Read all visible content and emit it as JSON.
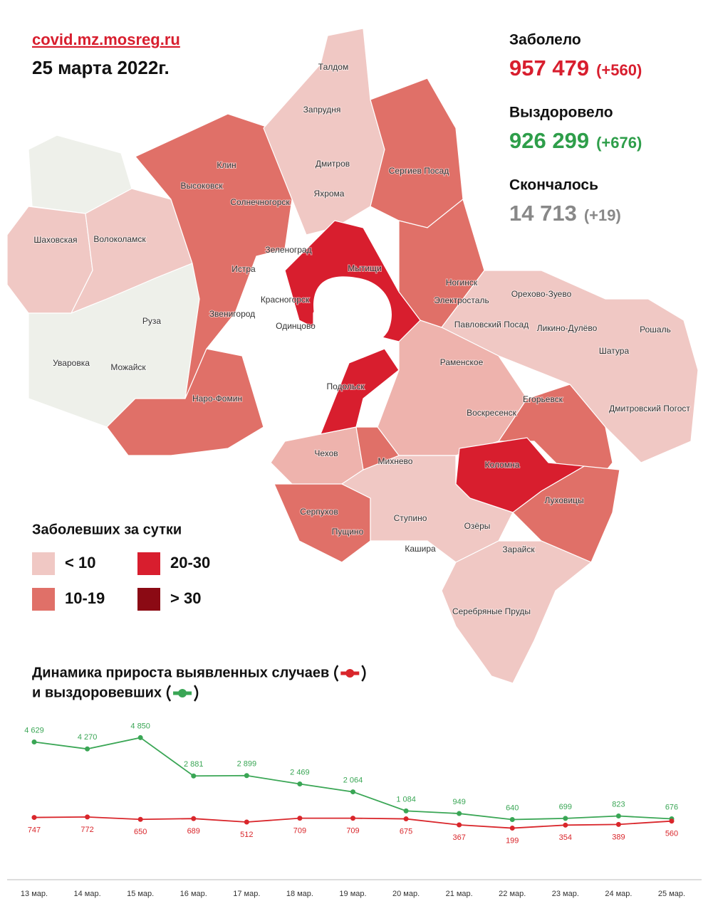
{
  "header": {
    "site": "covid.mz.mosreg.ru",
    "date": "25 марта 2022г."
  },
  "stats": [
    {
      "label": "Заболело",
      "total": "957 479",
      "delta": "(+560)",
      "color": "#d81e2e"
    },
    {
      "label": "Выздоровело",
      "total": "926 299",
      "delta": "(+676)",
      "color": "#2e9e4a"
    },
    {
      "label": "Скончалось",
      "total": "14 713",
      "delta": "(+19)",
      "color": "#888888"
    }
  ],
  "legend": {
    "title": "Заболевших за сутки",
    "items": [
      {
        "label": "< 10",
        "color": "#f0c8c4"
      },
      {
        "label": "10-19",
        "color": "#e07068"
      },
      {
        "label": "20-30",
        "color": "#d81e2e"
      },
      {
        "label": "> 30",
        "color": "#8b0a14"
      }
    ]
  },
  "map": {
    "labels": [
      "Талдом",
      "Запрудня",
      "Дмитров",
      "Яхрома",
      "Сергиев Посад",
      "Клин",
      "Высоковск",
      "Солнечногорск",
      "Шаховская",
      "Волоколамск",
      "Зеленоград",
      "Истра",
      "Мытищи",
      "Ногинск",
      "Орехово-Зуево",
      "Красногорск",
      "Электросталь",
      "Звенигород",
      "Одинцово",
      "Павловский Посад",
      "Ликино-Дулёво",
      "Руза",
      "Рошаль",
      "Шатура",
      "Уваровка",
      "Можайск",
      "Раменское",
      "Подольск",
      "Наро-Фомин",
      "Егорьевск",
      "Дмитровский Погост",
      "Воскресенск",
      "Чехов",
      "Михнево",
      "Коломна",
      "Серпухов",
      "Луховицы",
      "Пущино",
      "Ступино",
      "Озёры",
      "Кашира",
      "Зарайск",
      "Серебряные Пруды"
    ]
  },
  "chart_data": {
    "type": "line",
    "title": "Динамика прироста выявленных случаев",
    "subtitle": "и выздоровевших",
    "categories": [
      "13 мар.",
      "14 мар.",
      "15 мар.",
      "16 мар.",
      "17 мар.",
      "18 мар.",
      "19 мар.",
      "20 мар.",
      "21 мар.",
      "22 мар.",
      "23 мар.",
      "24 мар.",
      "25 мар."
    ],
    "ylim": [
      0,
      6000
    ],
    "series": [
      {
        "color": "#3aa655",
        "values": [
          4629,
          4270,
          4850,
          2881,
          2899,
          2469,
          2064,
          1084,
          949,
          640,
          699,
          823,
          676
        ],
        "value_labels": [
          "4 629",
          "4 270",
          "4 850",
          "2 881",
          "2 899",
          "2 469",
          "2 064",
          "1 084",
          "949",
          "640",
          "699",
          "823",
          "676"
        ]
      },
      {
        "color": "#d9262b",
        "values": [
          747,
          772,
          650,
          689,
          512,
          709,
          709,
          675,
          367,
          199,
          354,
          389,
          560
        ]
      }
    ]
  }
}
